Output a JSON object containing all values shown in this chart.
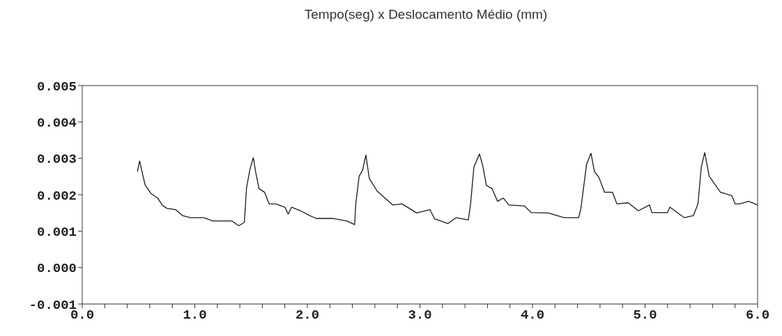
{
  "chart_data": {
    "type": "line",
    "title": "Tempo(seg)  x  Deslocamento Médio (mm)",
    "x": [
      0.49,
      0.51,
      0.54,
      0.56,
      0.61,
      0.67,
      0.71,
      0.75,
      0.83,
      0.89,
      0.96,
      1.08,
      1.16,
      1.33,
      1.39,
      1.44,
      1.46,
      1.49,
      1.52,
      1.54,
      1.57,
      1.62,
      1.66,
      1.72,
      1.8,
      1.83,
      1.86,
      1.94,
      2.02,
      2.08,
      2.23,
      2.35,
      2.42,
      2.43,
      2.46,
      2.49,
      2.52,
      2.55,
      2.62,
      2.7,
      2.76,
      2.84,
      2.91,
      2.97,
      3.09,
      3.13,
      3.25,
      3.32,
      3.43,
      3.45,
      3.48,
      3.53,
      3.56,
      3.59,
      3.64,
      3.69,
      3.74,
      3.79,
      3.93,
      3.99,
      4.14,
      4.28,
      4.41,
      4.43,
      4.48,
      4.52,
      4.55,
      4.59,
      4.64,
      4.71,
      4.75,
      4.85,
      4.94,
      5.04,
      5.06,
      5.2,
      5.22,
      5.35,
      5.43,
      5.47,
      5.5,
      5.53,
      5.57,
      5.67,
      5.77,
      5.8,
      5.84,
      5.92,
      6.0
    ],
    "series": [
      {
        "color": "#1a1a1a",
        "values": [
          0.00264,
          0.00293,
          0.00251,
          0.00226,
          0.00204,
          0.00191,
          0.00172,
          0.00163,
          0.00159,
          0.00143,
          0.00137,
          0.00137,
          0.00128,
          0.00128,
          0.00115,
          0.00124,
          0.0022,
          0.0027,
          0.00302,
          0.00264,
          0.00217,
          0.00207,
          0.00175,
          0.00175,
          0.00166,
          0.00147,
          0.00166,
          0.00156,
          0.00143,
          0.00135,
          0.00135,
          0.00128,
          0.00118,
          0.00175,
          0.00251,
          0.00267,
          0.00309,
          0.00245,
          0.0021,
          0.00188,
          0.00172,
          0.00175,
          0.00162,
          0.0015,
          0.00159,
          0.00134,
          0.00121,
          0.00137,
          0.00131,
          0.00175,
          0.00277,
          0.00312,
          0.00277,
          0.00226,
          0.00217,
          0.00182,
          0.00191,
          0.00172,
          0.00169,
          0.00151,
          0.0015,
          0.00137,
          0.00137,
          0.00162,
          0.00283,
          0.00314,
          0.00264,
          0.00248,
          0.00207,
          0.00207,
          0.00175,
          0.00178,
          0.00156,
          0.00172,
          0.00151,
          0.00151,
          0.00166,
          0.00137,
          0.00143,
          0.00175,
          0.00277,
          0.00316,
          0.00251,
          0.00207,
          0.00198,
          0.00175,
          0.00175,
          0.00182,
          0.00172
        ]
      }
    ],
    "xlim": [
      0,
      6
    ],
    "xticks": [
      {
        "value": 0,
        "label": "0.0"
      },
      {
        "value": 0.2,
        "label": null
      },
      {
        "value": 0.4,
        "label": null
      },
      {
        "value": 0.6,
        "label": null
      },
      {
        "value": 0.8,
        "label": null
      },
      {
        "value": 1,
        "label": "1.0"
      },
      {
        "value": 1.2,
        "label": null
      },
      {
        "value": 1.4,
        "label": null
      },
      {
        "value": 1.6,
        "label": null
      },
      {
        "value": 1.8,
        "label": null
      },
      {
        "value": 2,
        "label": "2.0"
      },
      {
        "value": 2.2,
        "label": null
      },
      {
        "value": 2.4,
        "label": null
      },
      {
        "value": 2.6,
        "label": null
      },
      {
        "value": 2.8,
        "label": null
      },
      {
        "value": 3,
        "label": "3.0"
      },
      {
        "value": 3.2,
        "label": null
      },
      {
        "value": 3.4,
        "label": null
      },
      {
        "value": 3.6,
        "label": null
      },
      {
        "value": 3.8,
        "label": null
      },
      {
        "value": 4,
        "label": "4.0"
      },
      {
        "value": 4.2,
        "label": null
      },
      {
        "value": 4.4,
        "label": null
      },
      {
        "value": 4.6,
        "label": null
      },
      {
        "value": 4.8,
        "label": null
      },
      {
        "value": 5,
        "label": "5.0"
      },
      {
        "value": 5.2,
        "label": null
      },
      {
        "value": 5.4,
        "label": null
      },
      {
        "value": 5.6,
        "label": null
      },
      {
        "value": 5.8,
        "label": null
      },
      {
        "value": 6,
        "label": "6.0"
      }
    ],
    "ylim": [
      -0.001,
      0.005
    ],
    "yticks": [
      -0.001,
      {
        "value": 0,
        "label": "0.000"
      },
      0.001,
      0.002,
      0.003,
      0.004,
      0.005
    ],
    "marker": "none",
    "line_style": "solid"
  }
}
